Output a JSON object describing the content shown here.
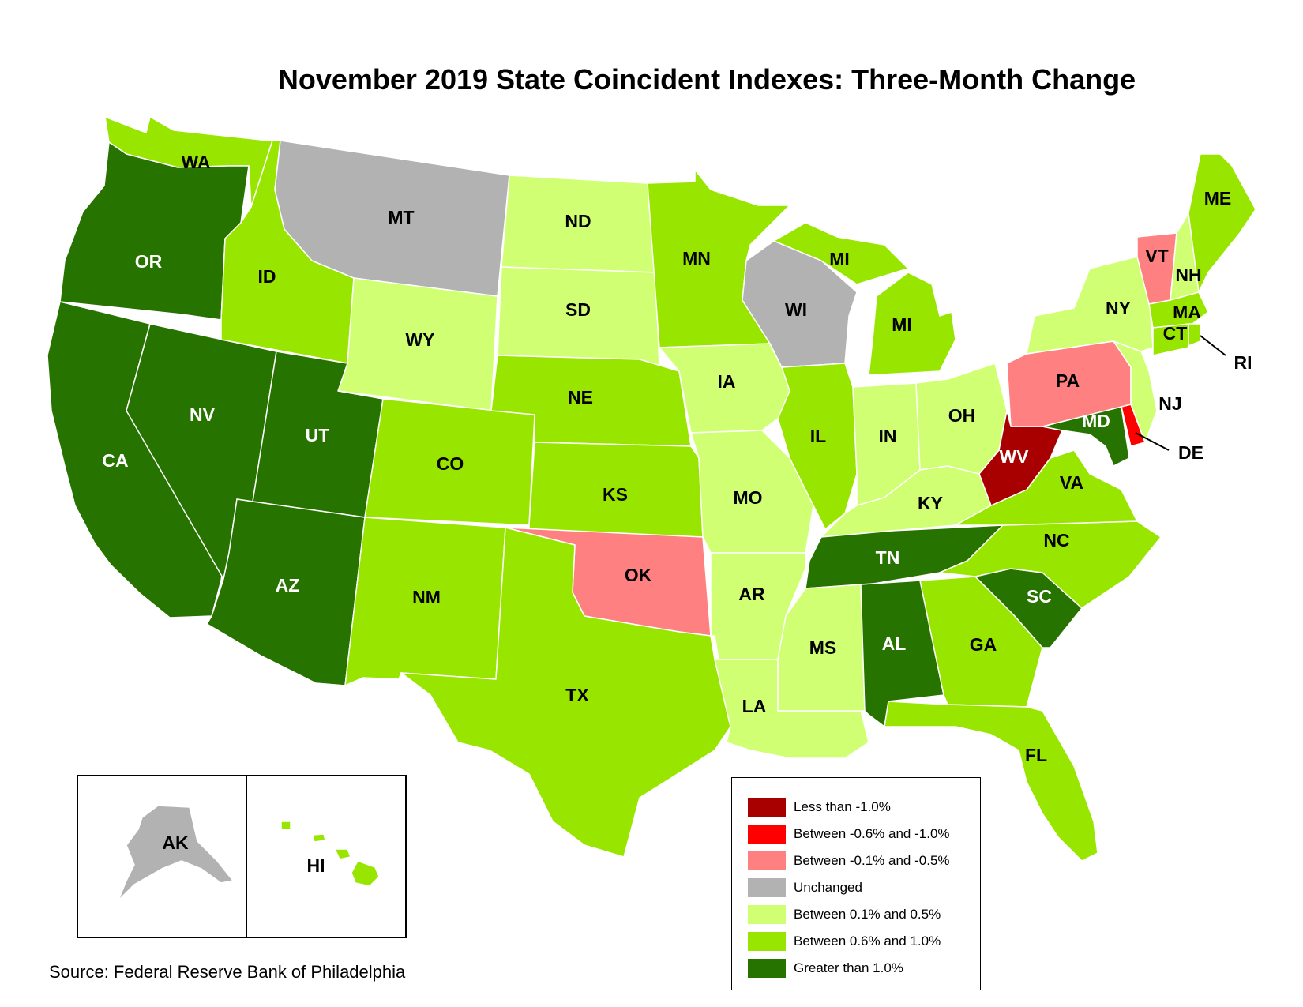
{
  "title": "November 2019 State Coincident Indexes: Three-Month Change",
  "source": "Source: Federal Reserve Bank of Philadelphia",
  "colors": {
    "lt_neg1": "#a80000",
    "neg06_1": "#ff0000",
    "neg01_05": "#ff8080",
    "unchanged": "#b2b2b2",
    "p01_05": "#d1ff73",
    "p06_1": "#98e600",
    "gt_1": "#267300"
  },
  "legend": [
    {
      "label": "Less than -1.0%",
      "color": "#a80000"
    },
    {
      "label": "Between -0.6% and -1.0%",
      "color": "#ff0000"
    },
    {
      "label": "Between -0.1% and -0.5%",
      "color": "#ff8080"
    },
    {
      "label": "Unchanged",
      "color": "#b2b2b2"
    },
    {
      "label": "Between 0.1% and 0.5%",
      "color": "#d1ff73"
    },
    {
      "label": "Between 0.6% and 1.0%",
      "color": "#98e600"
    },
    {
      "label": "Greater than 1.0%",
      "color": "#267300"
    }
  ],
  "states": {
    "WA": "Between 0.6% and 1.0%",
    "OR": "Greater than 1.0%",
    "CA": "Greater than 1.0%",
    "NV": "Greater than 1.0%",
    "ID": "Between 0.6% and 1.0%",
    "MT": "Unchanged",
    "WY": "Between 0.1% and 0.5%",
    "UT": "Greater than 1.0%",
    "AZ": "Greater than 1.0%",
    "CO": "Between 0.6% and 1.0%",
    "NM": "Between 0.6% and 1.0%",
    "ND": "Between 0.1% and 0.5%",
    "SD": "Between 0.1% and 0.5%",
    "NE": "Between 0.6% and 1.0%",
    "KS": "Between 0.6% and 1.0%",
    "OK": "Between -0.1% and -0.5%",
    "TX": "Between 0.6% and 1.0%",
    "MN": "Between 0.6% and 1.0%",
    "IA": "Between 0.1% and 0.5%",
    "MO": "Between 0.1% and 0.5%",
    "AR": "Between 0.1% and 0.5%",
    "LA": "Between 0.1% and 0.5%",
    "WI": "Unchanged",
    "IL": "Between 0.6% and 1.0%",
    "MI": "Between 0.6% and 1.0%",
    "IN": "Between 0.1% and 0.5%",
    "OH": "Between 0.1% and 0.5%",
    "KY": "Between 0.1% and 0.5%",
    "TN": "Greater than 1.0%",
    "MS": "Between 0.1% and 0.5%",
    "AL": "Greater than 1.0%",
    "GA": "Between 0.6% and 1.0%",
    "FL": "Between 0.6% and 1.0%",
    "SC": "Greater than 1.0%",
    "NC": "Between 0.6% and 1.0%",
    "VA": "Between 0.6% and 1.0%",
    "WV": "Less than -1.0%",
    "MD": "Greater than 1.0%",
    "DE": "Between -0.6% and -1.0%",
    "PA": "Between -0.1% and -0.5%",
    "NJ": "Between 0.1% and 0.5%",
    "NY": "Between 0.1% and 0.5%",
    "CT": "Between 0.6% and 1.0%",
    "RI": "Between 0.6% and 1.0%",
    "MA": "Between 0.6% and 1.0%",
    "VT": "Between -0.1% and -0.5%",
    "NH": "Between 0.1% and 0.5%",
    "ME": "Between 0.6% and 1.0%",
    "AK": "Unchanged",
    "HI": "Between 0.6% and 1.0%"
  },
  "labels": {
    "WA": "WA",
    "OR": "OR",
    "CA": "CA",
    "NV": "NV",
    "ID": "ID",
    "MT": "MT",
    "WY": "WY",
    "UT": "UT",
    "AZ": "AZ",
    "CO": "CO",
    "NM": "NM",
    "ND": "ND",
    "SD": "SD",
    "NE": "NE",
    "KS": "KS",
    "OK": "OK",
    "TX": "TX",
    "MN": "MN",
    "IA": "IA",
    "MO": "MO",
    "AR": "AR",
    "LA": "LA",
    "WI": "WI",
    "IL": "IL",
    "MI_UP": "MI",
    "MI": "MI",
    "IN": "IN",
    "OH": "OH",
    "KY": "KY",
    "TN": "TN",
    "MS": "MS",
    "AL": "AL",
    "GA": "GA",
    "FL": "FL",
    "SC": "SC",
    "NC": "NC",
    "VA": "VA",
    "WV": "WV",
    "MD": "MD",
    "DE": "DE",
    "PA": "PA",
    "NJ": "NJ",
    "NY": "NY",
    "CT": "CT",
    "RI": "RI",
    "MA": "MA",
    "VT": "VT",
    "NH": "NH",
    "ME": "ME",
    "AK": "AK",
    "HI": "HI"
  }
}
